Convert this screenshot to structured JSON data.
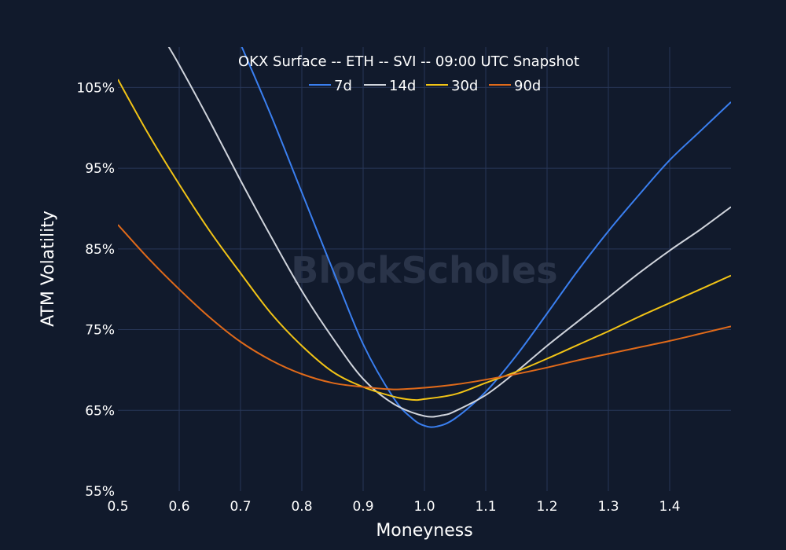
{
  "chart_data": {
    "type": "line",
    "title": "OKX Surface -- ETH -- SVI -- 09:00 UTC Snapshot",
    "xlabel": "Moneyness",
    "ylabel": "ATM Volatility",
    "watermark": "BlockScholes",
    "xlim": [
      0.5,
      1.5
    ],
    "ylim": [
      55,
      110
    ],
    "x_ticks": [
      0.5,
      0.6,
      0.7,
      0.8,
      0.9,
      1.0,
      1.1,
      1.2,
      1.3,
      1.4
    ],
    "x_tick_labels": [
      "0.5",
      "0.6",
      "0.7",
      "0.8",
      "0.9",
      "1.0",
      "1.1",
      "1.2",
      "1.3",
      "1.4"
    ],
    "y_ticks": [
      55,
      65,
      75,
      85,
      95,
      105
    ],
    "y_tick_labels": [
      "55%",
      "65%",
      "75%",
      "85%",
      "95%",
      "105%"
    ],
    "grid": true,
    "legend_position": "top-center",
    "background": "#111a2c",
    "grid_color": "#283758",
    "series": [
      {
        "name": "7d",
        "color": "#3a7ff0",
        "points": [
          [
            0.7,
            110.4
          ],
          [
            0.75,
            101.5
          ],
          [
            0.8,
            92.0
          ],
          [
            0.85,
            82.5
          ],
          [
            0.9,
            73.2
          ],
          [
            0.95,
            66.5
          ],
          [
            0.98,
            64.0
          ],
          [
            1.0,
            63.1
          ],
          [
            1.02,
            63.0
          ],
          [
            1.05,
            64.0
          ],
          [
            1.1,
            67.3
          ],
          [
            1.15,
            71.8
          ],
          [
            1.2,
            77.0
          ],
          [
            1.25,
            82.3
          ],
          [
            1.3,
            87.2
          ],
          [
            1.35,
            91.7
          ],
          [
            1.4,
            96.0
          ],
          [
            1.45,
            99.6
          ],
          [
            1.5,
            103.2
          ]
        ]
      },
      {
        "name": "14d",
        "color": "#d0d4dc",
        "points": [
          [
            0.58,
            110.4
          ],
          [
            0.6,
            107.8
          ],
          [
            0.65,
            100.8
          ],
          [
            0.7,
            93.5
          ],
          [
            0.75,
            86.5
          ],
          [
            0.8,
            79.8
          ],
          [
            0.85,
            74.0
          ],
          [
            0.9,
            68.9
          ],
          [
            0.95,
            65.8
          ],
          [
            1.0,
            64.3
          ],
          [
            1.03,
            64.4
          ],
          [
            1.05,
            64.9
          ],
          [
            1.1,
            66.9
          ],
          [
            1.15,
            69.8
          ],
          [
            1.2,
            73.0
          ],
          [
            1.25,
            76.0
          ],
          [
            1.3,
            79.0
          ],
          [
            1.35,
            82.0
          ],
          [
            1.4,
            84.8
          ],
          [
            1.45,
            87.4
          ],
          [
            1.5,
            90.2
          ]
        ]
      },
      {
        "name": "30d",
        "color": "#f2c416",
        "points": [
          [
            0.5,
            106.0
          ],
          [
            0.55,
            99.2
          ],
          [
            0.6,
            93.0
          ],
          [
            0.65,
            87.2
          ],
          [
            0.7,
            82.0
          ],
          [
            0.75,
            77.0
          ],
          [
            0.8,
            73.0
          ],
          [
            0.85,
            69.8
          ],
          [
            0.9,
            67.9
          ],
          [
            0.95,
            66.7
          ],
          [
            0.98,
            66.3
          ],
          [
            1.0,
            66.4
          ],
          [
            1.05,
            67.0
          ],
          [
            1.1,
            68.4
          ],
          [
            1.15,
            69.8
          ],
          [
            1.2,
            71.4
          ],
          [
            1.25,
            73.1
          ],
          [
            1.3,
            74.8
          ],
          [
            1.35,
            76.6
          ],
          [
            1.4,
            78.3
          ],
          [
            1.45,
            80.0
          ],
          [
            1.5,
            81.7
          ]
        ]
      },
      {
        "name": "90d",
        "color": "#e06a1a",
        "points": [
          [
            0.5,
            88.0
          ],
          [
            0.55,
            83.8
          ],
          [
            0.6,
            80.0
          ],
          [
            0.65,
            76.5
          ],
          [
            0.7,
            73.5
          ],
          [
            0.75,
            71.2
          ],
          [
            0.8,
            69.5
          ],
          [
            0.85,
            68.4
          ],
          [
            0.9,
            67.9
          ],
          [
            0.95,
            67.6
          ],
          [
            1.0,
            67.8
          ],
          [
            1.05,
            68.2
          ],
          [
            1.1,
            68.8
          ],
          [
            1.15,
            69.5
          ],
          [
            1.2,
            70.3
          ],
          [
            1.25,
            71.2
          ],
          [
            1.3,
            72.0
          ],
          [
            1.35,
            72.8
          ],
          [
            1.4,
            73.6
          ],
          [
            1.45,
            74.5
          ],
          [
            1.5,
            75.4
          ]
        ]
      }
    ]
  }
}
